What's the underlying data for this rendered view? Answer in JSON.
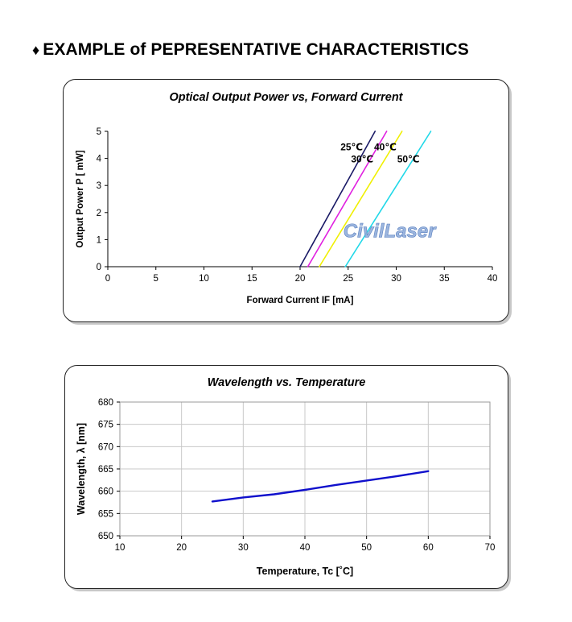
{
  "page": {
    "heading_symbol": "♦",
    "heading": "EXAMPLE of PEPRESENTATIVE CHARACTERISTICS",
    "watermark": "CivilLaser"
  },
  "chart_data": [
    {
      "type": "line",
      "title": "Optical Output Power vs, Forward Current",
      "xlabel": "Forward Current IF [mA]",
      "ylabel": "Output Power P [ mW]",
      "xlim": [
        0,
        40
      ],
      "ylim": [
        0,
        5
      ],
      "xticks": [
        0,
        5,
        10,
        15,
        20,
        25,
        30,
        35,
        40
      ],
      "yticks": [
        0,
        1,
        2,
        3,
        4,
        5
      ],
      "grid": false,
      "series": [
        {
          "name": "25℃",
          "color": "#1a1a66",
          "x": [
            20.0,
            27.8
          ],
          "y": [
            0,
            5
          ]
        },
        {
          "name": "30℃",
          "color": "#e020e0",
          "x": [
            20.8,
            29.0
          ],
          "y": [
            0,
            5
          ]
        },
        {
          "name": "40℃",
          "color": "#f0f000",
          "x": [
            22.0,
            30.6
          ],
          "y": [
            0,
            5
          ]
        },
        {
          "name": "50℃",
          "color": "#20d8e8",
          "x": [
            24.7,
            33.6
          ],
          "y": [
            0,
            5
          ]
        }
      ],
      "annotations": [
        {
          "text": "25℃",
          "x": 24.2,
          "y": 4.3
        },
        {
          "text": "40℃",
          "x": 27.7,
          "y": 4.3
        },
        {
          "text": "30℃",
          "x": 25.3,
          "y": 3.85
        },
        {
          "text": "50℃",
          "x": 30.1,
          "y": 3.85
        }
      ]
    },
    {
      "type": "line",
      "title": "Wavelength vs. Temperature",
      "xlabel": "Temperature, Tc [˚C]",
      "ylabel": "Wavelength, λ [nm]",
      "xlim": [
        10,
        70
      ],
      "ylim": [
        650,
        680
      ],
      "xticks": [
        10,
        20,
        30,
        40,
        50,
        60,
        70
      ],
      "yticks": [
        650,
        655,
        660,
        665,
        670,
        675,
        680
      ],
      "grid": true,
      "series": [
        {
          "color": "#1010cc",
          "x": [
            25,
            30,
            35,
            40,
            45,
            50,
            55,
            60
          ],
          "y": [
            657.7,
            658.6,
            659.3,
            660.3,
            661.4,
            662.4,
            663.4,
            664.5
          ]
        }
      ]
    }
  ]
}
